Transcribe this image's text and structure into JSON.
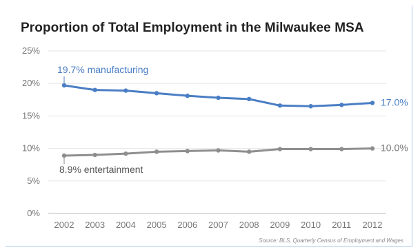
{
  "chart_data": {
    "type": "line",
    "title": "Proportion of Total Employment in the Milwaukee MSA",
    "x": [
      "2002",
      "2003",
      "2004",
      "2005",
      "2006",
      "2007",
      "2008",
      "2009",
      "2010",
      "2011",
      "2012"
    ],
    "ylim": [
      0,
      25
    ],
    "yticks": [
      "0%",
      "5%",
      "10%",
      "15%",
      "20%",
      "25%"
    ],
    "grid": true,
    "series": [
      {
        "name": "manufacturing",
        "color": "#4a7ec4",
        "values": [
          19.7,
          19.0,
          18.9,
          18.5,
          18.1,
          17.8,
          17.6,
          16.6,
          16.5,
          16.7,
          17.0
        ]
      },
      {
        "name": "entertainment",
        "color": "#8e8e8e",
        "values": [
          8.9,
          9.0,
          9.2,
          9.5,
          9.6,
          9.7,
          9.5,
          9.9,
          9.9,
          9.9,
          10.0
        ]
      }
    ],
    "annotations": {
      "manufacturing_start": "19.7% manufacturing",
      "manufacturing_end": "17.0%",
      "entertainment_start": "8.9% entertainment",
      "entertainment_end": "10.0%"
    },
    "source": "Source: BLS, Quarterly Census of Employment and Wages"
  }
}
